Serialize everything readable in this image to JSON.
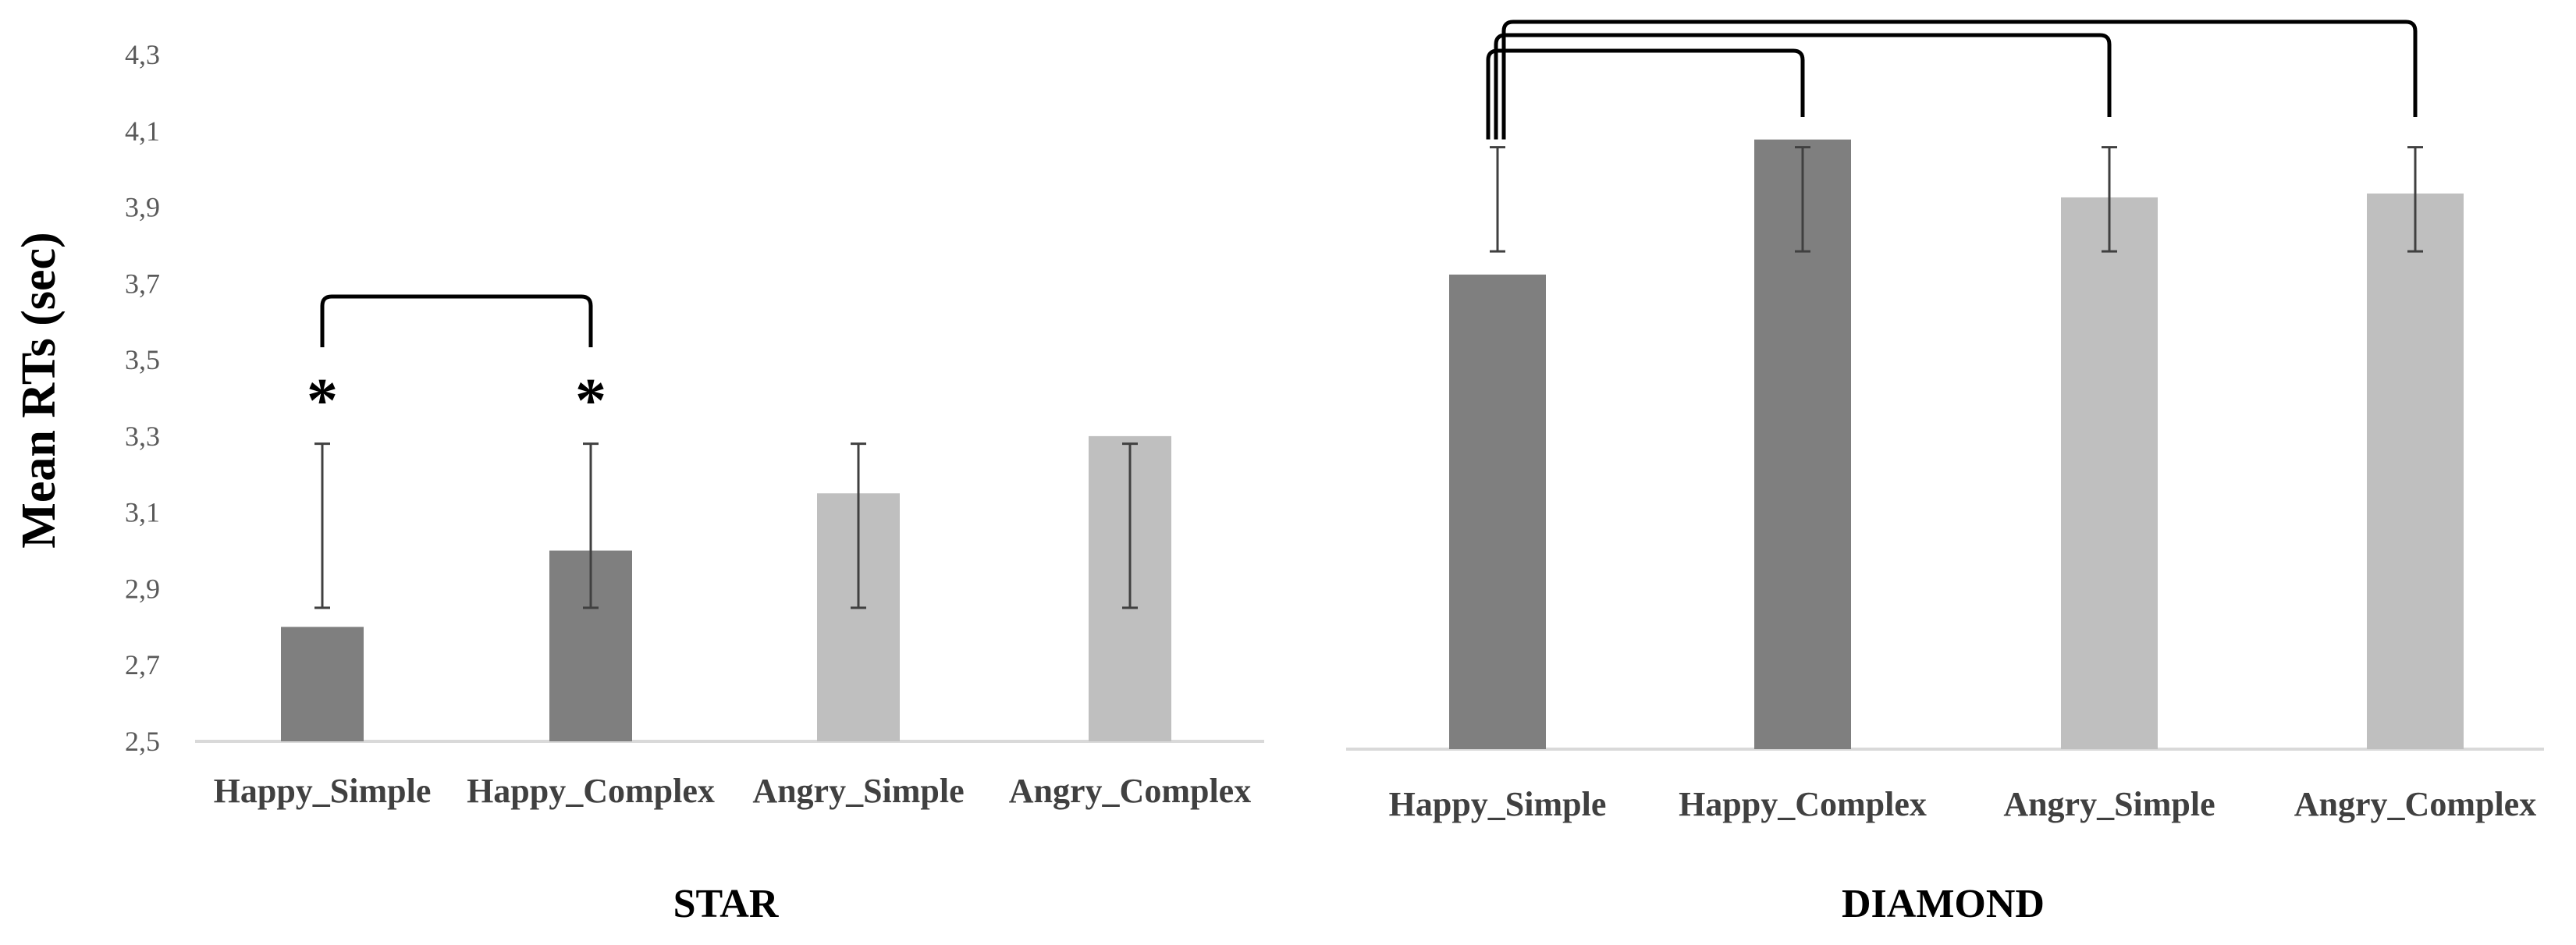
{
  "ylabel": "Mean RTs (sec)",
  "chart_data": [
    {
      "type": "bar",
      "title": "STAR",
      "categories": [
        "Happy_Simple",
        "Happy_Complex",
        "Angry_Simple",
        "Angry_Complex"
      ],
      "values": [
        2.8,
        3.0,
        3.15,
        3.3
      ],
      "error_upper": [
        3.28,
        3.28,
        3.28,
        3.28
      ],
      "error_lower": [
        2.85,
        2.85,
        2.85,
        2.85
      ],
      "colors": [
        "#7f7f7f",
        "#7f7f7f",
        "#bfbfbf",
        "#bfbfbf"
      ],
      "ylabel": "Mean RTs (sec)",
      "ylim": [
        2.5,
        4.3
      ],
      "yticks": [
        "2,5",
        "2,7",
        "2,9",
        "3,1",
        "3,3",
        "3,5",
        "3,7",
        "3,9",
        "4,1",
        "4,3"
      ],
      "significance": [
        {
          "from": 0,
          "to": 1,
          "marker": "*"
        }
      ],
      "grid": false
    },
    {
      "type": "bar",
      "title": "DIAMOND",
      "categories": [
        "Happy_Simple",
        "Happy_Complex",
        "Angry_Simple",
        "Angry_Complex"
      ],
      "values": [
        3.73,
        4.08,
        3.93,
        3.94
      ],
      "error_upper": [
        4.06,
        4.06,
        4.06,
        4.06
      ],
      "error_lower": [
        3.79,
        3.79,
        3.79,
        3.79
      ],
      "colors": [
        "#7f7f7f",
        "#7f7f7f",
        "#bfbfbf",
        "#bfbfbf"
      ],
      "ylim": [
        2.5,
        4.3
      ],
      "significance": [
        {
          "from": 0,
          "to": 1
        },
        {
          "from": 0,
          "to": 2
        },
        {
          "from": 0,
          "to": 3
        }
      ],
      "grid": false
    }
  ]
}
